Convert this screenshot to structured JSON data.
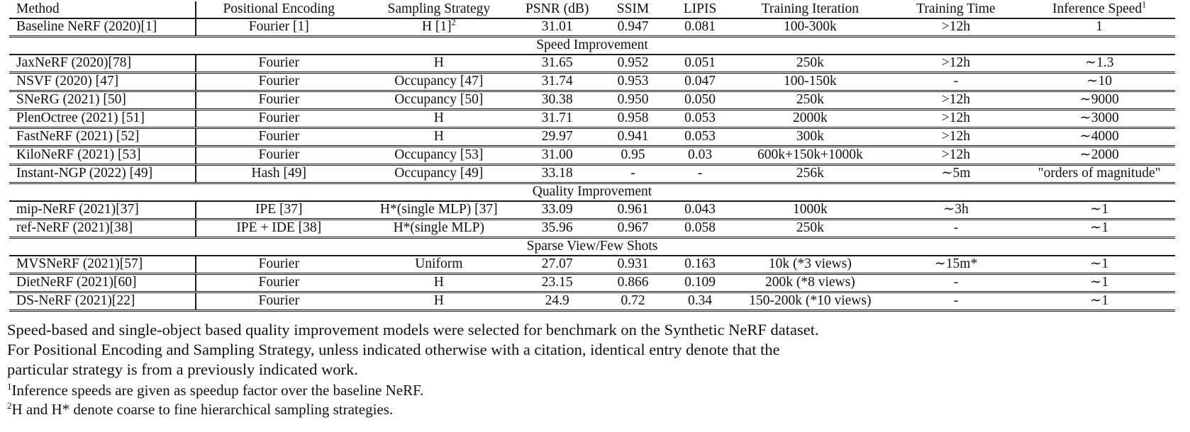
{
  "page": {
    "background": "#ffffff",
    "text_color": "#111111",
    "rule_color": "#1a1a1a"
  },
  "table": {
    "columns": [
      "Method",
      "Positional Encoding",
      "Sampling Strategy",
      "PSNR (dB)",
      "SSIM",
      "LIPIS",
      "Training Iteration",
      "Training Time",
      {
        "text": "Inference Speed",
        "sup": "1"
      }
    ],
    "groups": [
      {
        "section": null,
        "rows": [
          [
            "Baseline NeRF (2020)[1]",
            "Fourier [1]",
            {
              "text": "H [1]",
              "sup": "2"
            },
            "31.01",
            "0.947",
            "0.081",
            "100-300k",
            ">12h",
            "1"
          ]
        ]
      },
      {
        "section": "Speed Improvement",
        "rows": [
          [
            "JaxNeRF (2020)[78]",
            "Fourier",
            "H",
            "31.65",
            "0.952",
            "0.051",
            "250k",
            ">12h",
            "∼1.3"
          ],
          [
            "NSVF (2020) [47]",
            "Fourier",
            "Occupancy [47]",
            "31.74",
            "0.953",
            "0.047",
            "100-150k",
            "-",
            "∼10"
          ],
          [
            "SNeRG (2021) [50]",
            "Fourier",
            "Occupancy [50]",
            "30.38",
            "0.950",
            "0.050",
            "250k",
            ">12h",
            "∼9000"
          ],
          [
            "PlenOctree (2021) [51]",
            "Fourier",
            "H",
            "31.71",
            "0.958",
            "0.053",
            "2000k",
            ">12h",
            "∼3000"
          ],
          [
            "FastNeRF (2021) [52]",
            "Fourier",
            "H",
            "29.97",
            "0.941",
            "0.053",
            "300k",
            ">12h",
            "∼4000"
          ],
          [
            "KiloNeRF (2021) [53]",
            "Fourier",
            "Occupancy [53]",
            "31.00",
            "0.95",
            "0.03",
            "600k+150k+1000k",
            ">12h",
            "∼2000"
          ],
          [
            "Instant-NGP (2022) [49]",
            "Hash [49]",
            "Occupancy [49]",
            "33.18",
            "-",
            "-",
            "256k",
            "∼5m",
            "\"orders of magnitude\""
          ]
        ]
      },
      {
        "section": "Quality Improvement",
        "rows": [
          [
            "mip-NeRF (2021)[37]",
            "IPE [37]",
            "H*(single MLP) [37]",
            "33.09",
            "0.961",
            "0.043",
            "1000k",
            "∼3h",
            "∼1"
          ],
          [
            "ref-NeRF (2021)[38]",
            "IPE + IDE [38]",
            "H*(single MLP)",
            "35.96",
            "0.967",
            "0.058",
            "250k",
            "-",
            "∼1"
          ]
        ]
      },
      {
        "section": "Sparse View/Few Shots",
        "rows": [
          [
            "MVSNeRF (2021)[57]",
            "Fourier",
            "Uniform",
            "27.07",
            "0.931",
            "0.163",
            "10k (*3 views)",
            "∼15m*",
            "∼1"
          ],
          [
            "DietNeRF (2021)[60]",
            "Fourier",
            "H",
            "23.15",
            "0.866",
            "0.109",
            "200k (*8 views)",
            "-",
            "∼1"
          ],
          [
            "DS-NeRF (2021)[22]",
            "Fourier",
            "H",
            "24.9",
            "0.72",
            "0.34",
            "150-200k (*10 views)",
            "-",
            "∼1"
          ]
        ]
      }
    ]
  },
  "caption": {
    "line1": "Speed-based and single-object based quality improvement models were selected for benchmark on the Synthetic NeRF dataset.",
    "line2": "For Positional Encoding and Sampling Strategy, unless indicated otherwise with a citation, identical entry denote that the",
    "line3": "particular strategy is from a previously indicated work."
  },
  "footnotes": [
    {
      "sup": "1",
      "text": "Inference speeds are given as speedup factor over the baseline NeRF."
    },
    {
      "sup": "2",
      "text": "H and H* denote coarse to fine hierarchical sampling strategies."
    }
  ]
}
